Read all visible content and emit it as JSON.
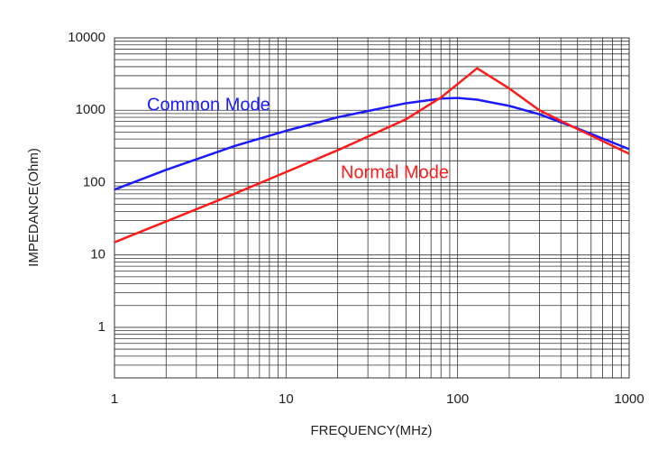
{
  "chart_data": {
    "type": "line",
    "x_label": "FREQUENCY(MHz)",
    "y_label": "IMPEDANCE(Ohm)",
    "x": [
      1,
      2,
      5,
      10,
      20,
      50,
      80,
      100,
      130,
      200,
      300,
      500,
      1000
    ],
    "series": [
      {
        "name": "Common Mode",
        "color": "#1a1aff",
        "values": [
          80,
          150,
          320,
          520,
          800,
          1250,
          1450,
          1480,
          1400,
          1150,
          880,
          560,
          290
        ]
      },
      {
        "name": "Normal Mode",
        "color": "#ff1a1a",
        "values": [
          15,
          29,
          70,
          140,
          280,
          750,
          1500,
          2300,
          3800,
          2000,
          1000,
          550,
          250
        ]
      }
    ],
    "xlim": [
      1,
      1000
    ],
    "ylim": [
      0.2,
      10000
    ],
    "xticks": [
      1,
      10,
      100,
      1000
    ],
    "yticks": [
      1,
      10,
      100,
      1000,
      10000
    ],
    "xscale": "log",
    "yscale": "log",
    "grid": true
  }
}
